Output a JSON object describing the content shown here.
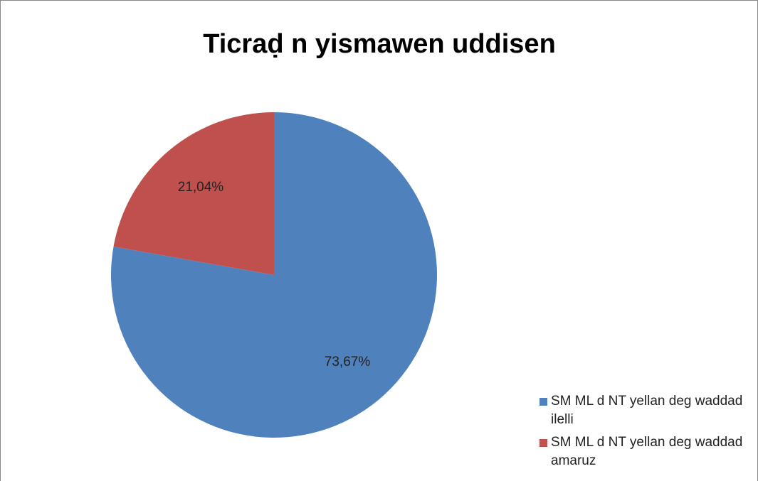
{
  "chart_data": {
    "type": "pie",
    "title": "Ticraḍ n yismawen uddisen",
    "categories": [
      "SM ML d NT yellan deg waddad ilelli",
      "SM ML d NT yellan deg waddad amaruz"
    ],
    "values": [
      73.67,
      21.04
    ],
    "value_labels": [
      "73,67%",
      "21,04%"
    ],
    "colors": [
      "#4f81bd",
      "#c0504d"
    ],
    "legend": "right"
  }
}
